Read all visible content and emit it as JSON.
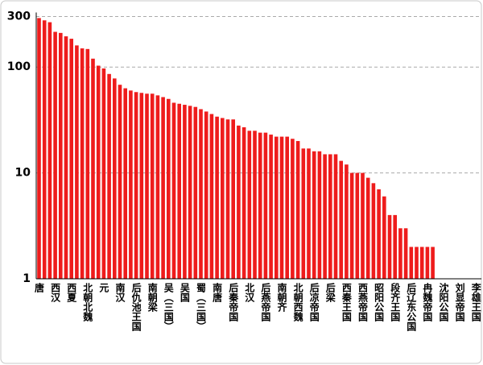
{
  "chart_data": {
    "type": "bar",
    "color": "#ee1c1c",
    "log_scale": true,
    "grid": true,
    "ylim": [
      1,
      300
    ],
    "yticks": [
      1,
      10,
      100,
      300
    ],
    "categories": [
      "唐",
      null,
      null,
      "西汉",
      null,
      null,
      "西夏",
      null,
      null,
      "北朝北魏",
      null,
      null,
      "元",
      null,
      null,
      "南汉",
      null,
      null,
      "后仇池王国",
      null,
      null,
      "南朝梁",
      null,
      null,
      "吴（三国）",
      null,
      null,
      "吴国",
      null,
      null,
      "蜀（三国）",
      null,
      null,
      "南唐",
      null,
      null,
      "后秦帝国",
      null,
      null,
      "北汉",
      null,
      null,
      "后燕帝国",
      null,
      null,
      "南朝齐",
      null,
      null,
      "北朝西魏",
      null,
      null,
      "后凉帝国",
      null,
      null,
      "后梁",
      null,
      null,
      "西秦王国",
      null,
      null,
      "西燕帝国",
      null,
      null,
      "昭阳公国",
      null,
      null,
      "段齐王国",
      null,
      null,
      "后辽东公国",
      null,
      null,
      "冉魏帝国",
      null,
      null,
      "沈阳公国",
      null,
      null,
      "刘显帝国",
      null,
      null,
      "李雄王国",
      null
    ],
    "values": [
      290,
      276,
      265,
      215,
      210,
      195,
      185,
      160,
      150,
      148,
      120,
      103,
      97,
      86,
      78,
      68,
      63,
      60,
      58,
      57,
      56,
      56,
      54,
      52,
      50,
      46,
      45,
      44,
      43,
      42,
      40,
      38,
      36,
      34,
      33,
      32,
      32,
      28,
      27,
      25,
      25,
      24,
      24,
      23,
      22,
      22,
      22,
      21,
      20,
      17,
      17,
      16,
      16,
      15,
      15,
      15,
      13,
      12,
      10,
      10,
      10,
      9,
      8,
      7,
      6,
      4,
      4,
      3,
      3,
      2,
      2,
      2,
      2,
      2,
      null,
      null,
      null,
      null,
      null,
      null,
      null,
      null,
      null
    ]
  }
}
